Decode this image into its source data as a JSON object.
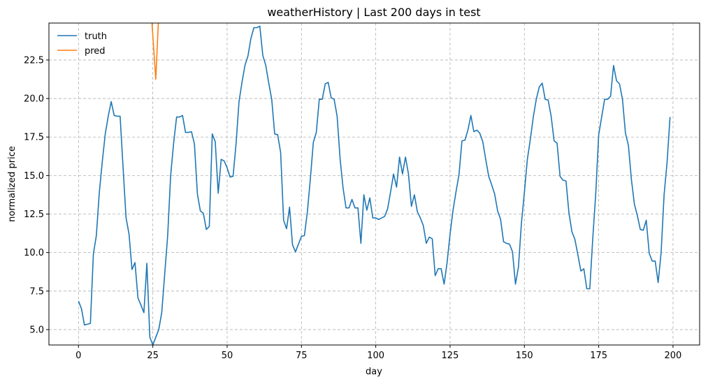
{
  "chart_data": {
    "type": "line",
    "title": "weatherHistory | Last 200 days in test",
    "xlabel": "day",
    "ylabel": "normalized price",
    "xlim": [
      -9.95,
      208.95
    ],
    "ylim": [
      4.0,
      24.9
    ],
    "xticks": [
      0,
      25,
      50,
      75,
      100,
      125,
      150,
      175,
      200
    ],
    "yticks": [
      5.0,
      7.5,
      10.0,
      12.5,
      15.0,
      17.5,
      20.0,
      22.5
    ],
    "grid": true,
    "legend_position": "top-left",
    "series": [
      {
        "name": "truth",
        "color": "#1f77b4",
        "x": [
          0,
          1,
          2,
          3,
          4,
          5,
          6,
          7,
          8,
          9,
          10,
          11,
          12,
          13,
          14,
          15,
          16,
          17,
          18,
          19,
          20,
          21,
          22,
          23,
          24,
          25,
          26,
          27,
          28,
          29,
          30,
          31,
          32,
          33,
          34,
          35,
          36,
          37,
          38,
          39,
          40,
          41,
          42,
          43,
          44,
          45,
          46,
          47,
          48,
          49,
          50,
          51,
          52,
          53,
          54,
          55,
          56,
          57,
          58,
          59,
          60,
          61,
          62,
          63,
          64,
          65,
          66,
          67,
          68,
          69,
          70,
          71,
          72,
          73,
          74,
          75,
          76,
          77,
          78,
          79,
          80,
          81,
          82,
          83,
          84,
          85,
          86,
          87,
          88,
          89,
          90,
          91,
          92,
          93,
          94,
          95,
          96,
          97,
          98,
          99,
          100,
          101,
          102,
          103,
          104,
          105,
          106,
          107,
          108,
          109,
          110,
          111,
          112,
          113,
          114,
          115,
          116,
          117,
          118,
          119,
          120,
          121,
          122,
          123,
          124,
          125,
          126,
          127,
          128,
          129,
          130,
          131,
          132,
          133,
          134,
          135,
          136,
          137,
          138,
          139,
          140,
          141,
          142,
          143,
          144,
          145,
          146,
          147,
          148,
          149,
          150,
          151,
          152,
          153,
          154,
          155,
          156,
          157,
          158,
          159,
          160,
          161,
          162,
          163,
          164,
          165,
          166,
          167,
          168,
          169,
          170,
          171,
          172,
          173,
          174,
          175,
          176,
          177,
          178,
          179,
          180,
          181,
          182,
          183,
          184,
          185,
          186,
          187,
          188,
          189,
          190,
          191,
          192,
          193,
          194,
          195,
          196,
          197,
          198,
          199
        ],
        "y": [
          6.85,
          6.35,
          5.3,
          5.35,
          5.4,
          9.9,
          11.1,
          13.9,
          15.9,
          17.7,
          18.85,
          19.8,
          18.9,
          18.85,
          18.85,
          15.5,
          12.25,
          11.2,
          8.9,
          9.35,
          7.05,
          6.6,
          6.1,
          9.3,
          4.5,
          4.0,
          4.5,
          5.0,
          6.1,
          8.6,
          11.1,
          15.0,
          17.1,
          18.8,
          18.8,
          18.9,
          17.8,
          17.8,
          17.85,
          17.05,
          13.8,
          12.7,
          12.55,
          11.5,
          11.7,
          17.7,
          17.2,
          13.85,
          16.05,
          15.95,
          15.5,
          14.9,
          14.95,
          17.05,
          19.8,
          21.05,
          22.15,
          22.75,
          23.9,
          24.6,
          24.6,
          24.7,
          22.8,
          22.15,
          21.0,
          19.95,
          17.7,
          17.65,
          16.5,
          12.1,
          11.55,
          12.95,
          10.5,
          10.05,
          10.55,
          11.05,
          11.1,
          12.65,
          14.8,
          17.15,
          17.8,
          19.95,
          19.95,
          20.95,
          21.05,
          20.05,
          19.95,
          18.85,
          16.1,
          14.2,
          12.9,
          12.9,
          13.45,
          12.9,
          12.9,
          10.6,
          13.75,
          12.75,
          13.55,
          12.25,
          12.25,
          12.15,
          12.25,
          12.35,
          12.85,
          13.95,
          15.1,
          14.25,
          16.2,
          15.1,
          16.2,
          15.1,
          13.0,
          13.75,
          12.65,
          12.25,
          11.75,
          10.6,
          11.0,
          10.9,
          8.5,
          8.95,
          8.95,
          7.95,
          9.35,
          11.2,
          12.75,
          13.95,
          15.05,
          17.25,
          17.3,
          17.95,
          18.9,
          17.85,
          17.95,
          17.75,
          17.2,
          16.05,
          14.95,
          14.4,
          13.8,
          12.7,
          12.15,
          10.7,
          10.6,
          10.55,
          10.05,
          7.95,
          9.05,
          11.9,
          13.9,
          16.05,
          17.35,
          18.8,
          19.95,
          20.75,
          21.0,
          19.95,
          19.9,
          18.85,
          17.25,
          17.1,
          14.95,
          14.7,
          14.65,
          12.55,
          11.35,
          10.85,
          9.85,
          8.8,
          8.95,
          7.65,
          7.65,
          10.9,
          13.8,
          17.65,
          18.8,
          19.95,
          19.95,
          20.15,
          22.15,
          21.15,
          20.95,
          19.95,
          17.75,
          16.95,
          14.75,
          13.15,
          12.4,
          11.5,
          11.45,
          12.1,
          9.95,
          9.45,
          9.45,
          8.05,
          10.0,
          13.75,
          15.85,
          18.8
        ]
      },
      {
        "name": "pred",
        "color": "#ff7f0e",
        "x": [
          24.5,
          26,
          27
        ],
        "y": [
          25.5,
          21.25,
          25.5
        ]
      }
    ]
  }
}
